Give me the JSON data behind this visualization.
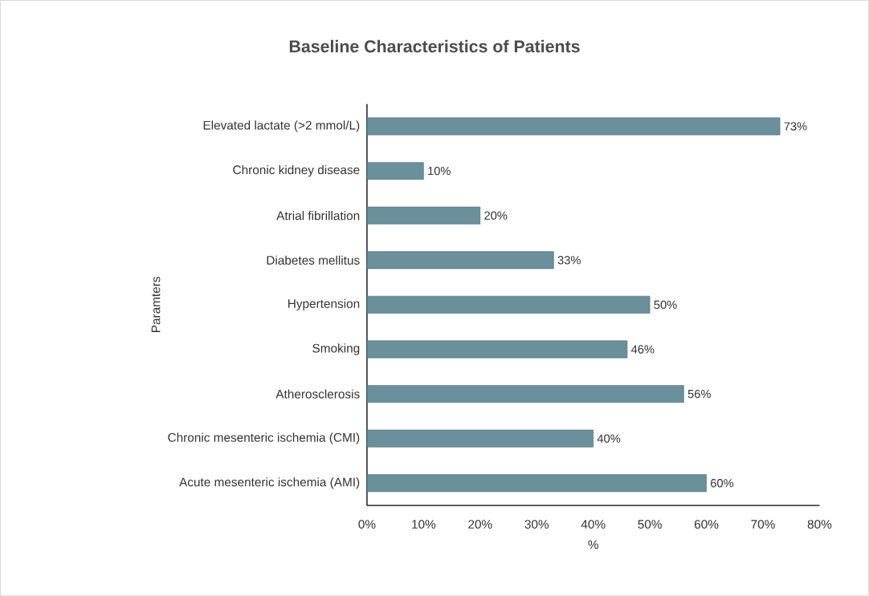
{
  "chart_data": {
    "type": "bar",
    "orientation": "horizontal",
    "title": "Baseline Characteristics of Patients",
    "xlabel": "%",
    "ylabel": "Paramters",
    "categories": [
      "Elevated lactate (>2 mmol/L)",
      "Chronic kidney disease",
      "Atrial fibrillation",
      "Diabetes mellitus",
      "Hypertension",
      "Smoking",
      "Atherosclerosis",
      "Chronic mesenteric ischemia (CMI)",
      "Acute mesenteric ischemia (AMI)"
    ],
    "values": [
      73,
      10,
      20,
      33,
      50,
      46,
      56,
      40,
      60
    ],
    "value_labels": [
      "73%",
      "10%",
      "20%",
      "33%",
      "50%",
      "46%",
      "56%",
      "40%",
      "60%"
    ],
    "color": "#69909b",
    "xlim": [
      0,
      80
    ],
    "xticks": [
      {
        "value": 0,
        "label": "0%"
      },
      {
        "value": 10,
        "label": "10%"
      },
      {
        "value": 20,
        "label": "20%"
      },
      {
        "value": 30,
        "label": "30%"
      },
      {
        "value": 40,
        "label": "40%"
      },
      {
        "value": 50,
        "label": "50%"
      },
      {
        "value": 60,
        "label": "60%"
      },
      {
        "value": 70,
        "label": "70%"
      },
      {
        "value": 80,
        "label": "80%"
      }
    ]
  }
}
